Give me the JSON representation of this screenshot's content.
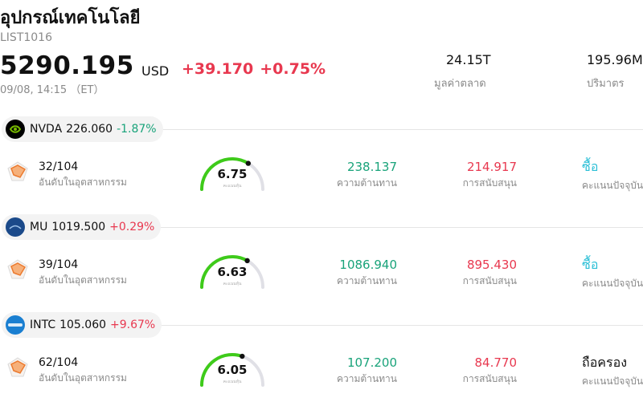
{
  "header": {
    "title": "อุปกรณ์เทคโนโลยี",
    "code": "LIST1016",
    "price": "5290.195",
    "currency": "USD",
    "change_abs": "+39.170",
    "change_pct": "+0.75%",
    "time": "09/08, 14:15 （ET）",
    "market_cap_value": "24.15T",
    "market_cap_label": "มูลค่าตลาด",
    "volume_value": "195.96M",
    "volume_label": "ปริมาตร"
  },
  "labels": {
    "rank": "อันดับในอุตสาหกรรม",
    "score": "คะแนนหุ้น",
    "resistance": "ความต้านทาน",
    "support": "การสนับสนุน",
    "current_rating": "คะแนนปัจจุบัน"
  },
  "colors": {
    "up": "#e8384f",
    "down": "#19a37a",
    "buy": "#2bbfd6",
    "gauge_fill": "#3ecb1a",
    "gauge_track": "#e0e0e6"
  },
  "stocks": [
    {
      "ticker": "NVDA",
      "price": "226.060",
      "change": "-1.87%",
      "direction": "down",
      "logo_icon": "nvidia-logo-icon",
      "rank": "32/104",
      "score": "6.75",
      "score_value": 6.75,
      "resistance": "238.137",
      "support": "214.917",
      "rating": "ซื้อ",
      "rating_type": "buy"
    },
    {
      "ticker": "MU",
      "price": "1019.500",
      "change": "+0.29%",
      "direction": "up",
      "logo_icon": "micron-logo-icon",
      "rank": "39/104",
      "score": "6.63",
      "score_value": 6.63,
      "resistance": "1086.940",
      "support": "895.430",
      "rating": "ซื้อ",
      "rating_type": "buy"
    },
    {
      "ticker": "INTC",
      "price": "105.060",
      "change": "+9.67%",
      "direction": "up",
      "logo_icon": "intel-logo-icon",
      "rank": "62/104",
      "score": "6.05",
      "score_value": 6.05,
      "resistance": "107.200",
      "support": "84.770",
      "rating": "ถือครอง",
      "rating_type": "hold"
    }
  ]
}
